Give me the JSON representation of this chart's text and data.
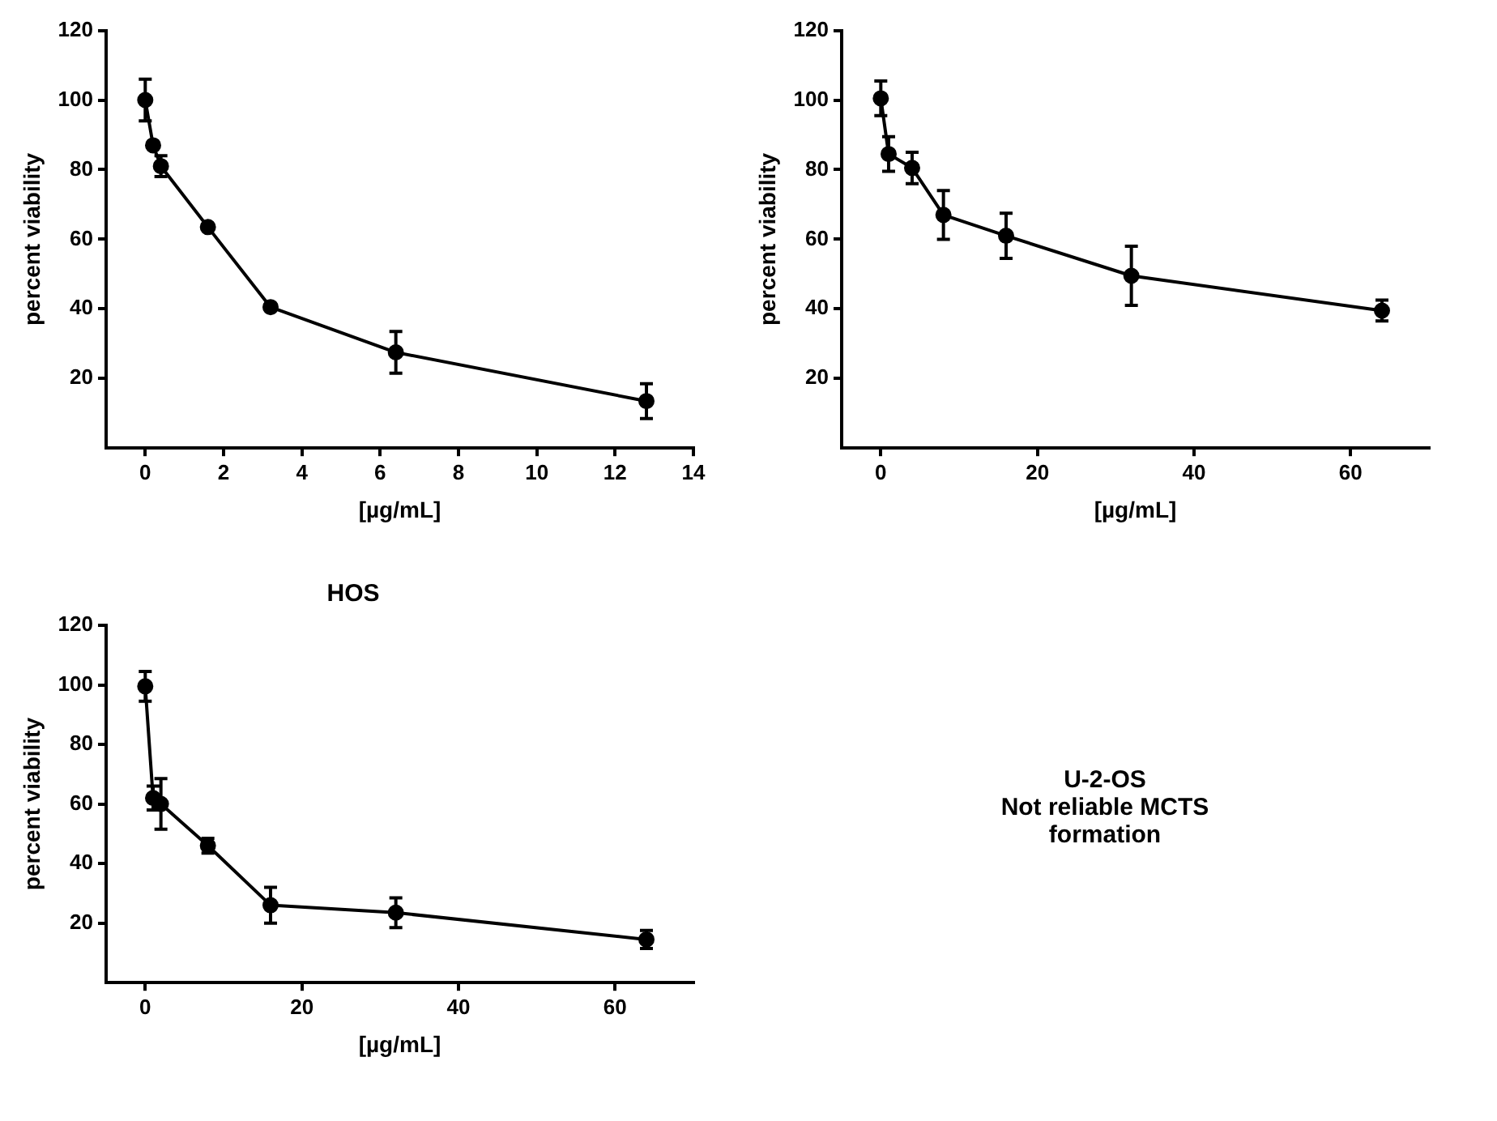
{
  "chart_data": [
    {
      "type": "line",
      "xlabel": "[µg/mL]",
      "ylabel": "percent viability",
      "color": "#000000",
      "marker": "circle",
      "grid": false,
      "x": [
        0,
        0.2,
        0.4,
        1.6,
        3.2,
        6.4,
        12.8
      ],
      "values": [
        100,
        87,
        81,
        63.5,
        40.5,
        27.5,
        13.5
      ],
      "errors": [
        6,
        null,
        3,
        null,
        null,
        6,
        5
      ],
      "xlim": [
        -1,
        14
      ],
      "xticks": [
        0,
        2,
        4,
        6,
        8,
        10,
        12,
        14
      ],
      "ylim": [
        0,
        120
      ],
      "yticks": [
        20,
        40,
        60,
        80,
        100,
        120
      ]
    },
    {
      "type": "line",
      "xlabel": "[µg/mL]",
      "ylabel": "percent viability",
      "color": "#000000",
      "marker": "circle",
      "grid": false,
      "x": [
        0,
        1,
        4,
        8,
        16,
        32,
        64
      ],
      "values": [
        100.5,
        84.5,
        80.5,
        67,
        61,
        49.5,
        39.5
      ],
      "errors": [
        5,
        5,
        4.5,
        7,
        6.5,
        8.5,
        3
      ],
      "xlim": [
        -5,
        70
      ],
      "xticks": [
        0,
        20,
        40,
        60
      ],
      "ylim": [
        0,
        120
      ],
      "yticks": [
        20,
        40,
        60,
        80,
        100,
        120
      ]
    },
    {
      "type": "line",
      "title": "HOS",
      "xlabel": "[µg/mL]",
      "ylabel": "percent viability",
      "color": "#000000",
      "marker": "circle",
      "grid": false,
      "x": [
        0,
        1,
        2,
        8,
        16,
        32,
        64
      ],
      "values": [
        99.5,
        62,
        60,
        46,
        26,
        23.5,
        14.5
      ],
      "errors": [
        5,
        4,
        8.5,
        2.5,
        6,
        5,
        3
      ],
      "xlim": [
        -5,
        70
      ],
      "xticks": [
        0,
        20,
        40,
        60
      ],
      "ylim": [
        0,
        120
      ],
      "yticks": [
        20,
        40,
        60,
        80,
        100,
        120
      ]
    },
    {
      "type": "other",
      "title": "U-2-OS",
      "annotations": [
        "Not reliable MCTS formation"
      ]
    }
  ]
}
